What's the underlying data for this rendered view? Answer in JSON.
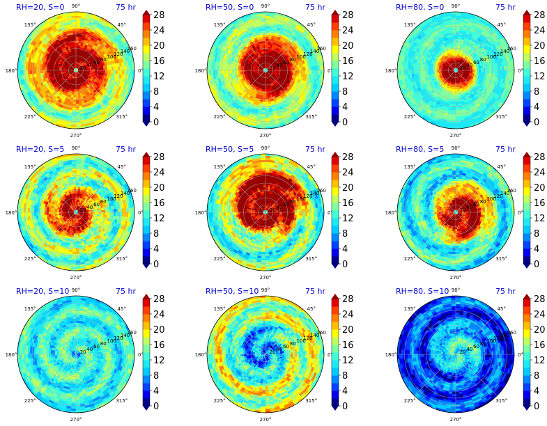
{
  "figure": {
    "colormap": "jet",
    "levels": [
      0,
      2,
      4,
      6,
      8,
      10,
      12,
      14,
      16,
      18,
      20,
      22,
      24,
      26,
      28
    ],
    "level_colors": [
      "#00008b",
      "#0000ee",
      "#0044ff",
      "#0088ff",
      "#00ccff",
      "#1de9f5",
      "#40ffd8",
      "#80ffa0",
      "#c0ff60",
      "#ffff00",
      "#ffbf00",
      "#ff8000",
      "#ff4000",
      "#e00000",
      "#990000"
    ],
    "colorbar_ticks": [
      "0",
      "4",
      "8",
      "12",
      "16",
      "20",
      "24",
      "28"
    ],
    "angle_labels": [
      "0°",
      "45°",
      "90°",
      "135°",
      "180°",
      "225°",
      "270°",
      "315°"
    ],
    "radial_ticks": [
      "20",
      "40",
      "60",
      "80",
      "100",
      "120",
      "140",
      "160"
    ]
  },
  "chart_data": [
    {
      "type": "heatmap",
      "projection": "polar",
      "title_left": "RH=20, S=0",
      "title_right": "75 hr",
      "rh": 20,
      "s": 0,
      "time_hr": 75,
      "r_max": 160,
      "colorbar_range": [
        0,
        28
      ],
      "field": {
        "core_value": 30,
        "core_radius": 45,
        "eye_value": 15,
        "eye_radius": 8,
        "falloff": 90,
        "background": 16,
        "asym": 0.35,
        "noise": 3
      }
    },
    {
      "type": "heatmap",
      "projection": "polar",
      "title_left": "RH=50, S=0",
      "title_right": "75 hr",
      "rh": 50,
      "s": 0,
      "time_hr": 75,
      "r_max": 160,
      "colorbar_range": [
        0,
        28
      ],
      "field": {
        "core_value": 30,
        "core_radius": 50,
        "eye_value": 12,
        "eye_radius": 6,
        "falloff": 60,
        "background": 15,
        "asym": 0.2,
        "noise": 2.5
      }
    },
    {
      "type": "heatmap",
      "projection": "polar",
      "title_left": "RH=80, S=0",
      "title_right": "75 hr",
      "rh": 80,
      "s": 0,
      "time_hr": 75,
      "r_max": 160,
      "colorbar_range": [
        0,
        28
      ],
      "field": {
        "core_value": 30,
        "core_radius": 30,
        "eye_value": 12,
        "eye_radius": 4,
        "falloff": 35,
        "background": 13,
        "asym": 0.1,
        "noise": 1.8
      }
    },
    {
      "type": "heatmap",
      "projection": "polar",
      "title_left": "RH=20, S=5",
      "title_right": "75 hr",
      "rh": 20,
      "s": 5,
      "time_hr": 75,
      "r_max": 160,
      "colorbar_range": [
        0,
        28
      ],
      "field": {
        "core_value": 29,
        "core_radius": 22,
        "eye_value": 12,
        "eye_radius": 4,
        "falloff": 70,
        "background": 15,
        "asym": 0.5,
        "noise": 4
      }
    },
    {
      "type": "heatmap",
      "projection": "polar",
      "title_left": "RH=50, S=5",
      "title_right": "75 hr",
      "rh": 50,
      "s": 5,
      "time_hr": 75,
      "r_max": 160,
      "colorbar_range": [
        0,
        28
      ],
      "field": {
        "core_value": 30,
        "core_radius": 60,
        "eye_value": 12,
        "eye_radius": 6,
        "falloff": 60,
        "background": 14,
        "asym": 0.6,
        "noise": 4
      }
    },
    {
      "type": "heatmap",
      "projection": "polar",
      "title_left": "RH=80, S=5",
      "title_right": "75 hr",
      "rh": 80,
      "s": 5,
      "time_hr": 75,
      "r_max": 160,
      "colorbar_range": [
        0,
        28
      ],
      "field": {
        "core_value": 29,
        "core_radius": 40,
        "eye_value": 12,
        "eye_radius": 5,
        "falloff": 55,
        "background": 12,
        "asym": 0.55,
        "noise": 3.5
      }
    },
    {
      "type": "heatmap",
      "projection": "polar",
      "title_left": "RH=20, S=10",
      "title_right": "75 hr",
      "rh": 20,
      "s": 10,
      "time_hr": 75,
      "r_max": 160,
      "colorbar_range": [
        0,
        28
      ],
      "field": {
        "core_value": 13,
        "core_radius": 30,
        "eye_value": 8,
        "eye_radius": 10,
        "falloff": 80,
        "background": 12,
        "asym": 0.3,
        "noise": 3
      }
    },
    {
      "type": "heatmap",
      "projection": "polar",
      "title_left": "RH=50, S=10",
      "title_right": "75 hr",
      "rh": 50,
      "s": 10,
      "time_hr": 75,
      "r_max": 160,
      "colorbar_range": [
        0,
        28
      ],
      "field": {
        "core_value": 8,
        "core_radius": 40,
        "eye_value": 6,
        "eye_radius": 10,
        "falloff": 60,
        "background": 17,
        "asym": 0.5,
        "noise": 4
      }
    },
    {
      "type": "heatmap",
      "projection": "polar",
      "title_left": "RH=80, S=10",
      "title_right": "75 hr",
      "rh": 80,
      "s": 10,
      "time_hr": 75,
      "r_max": 160,
      "colorbar_range": [
        0,
        28
      ],
      "field": {
        "core_value": 12,
        "core_radius": 35,
        "eye_value": 10,
        "eye_radius": 8,
        "falloff": 50,
        "background": 5,
        "asym": 0.5,
        "noise": 3
      }
    }
  ]
}
